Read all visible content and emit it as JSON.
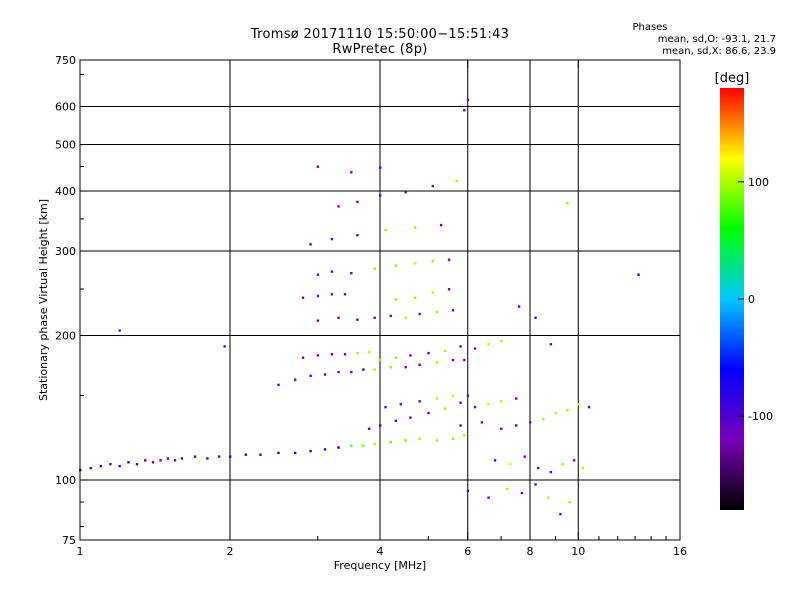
{
  "header": {
    "title_line1": "Tromsø 20171110 15:50:00−15:51:43",
    "title_line2": "RwPretec (8p)"
  },
  "stats": {
    "heading": "Phases",
    "line_o": "mean, sd,O: -93.1, 21.7",
    "line_x": "mean, sd,X:  86.6, 23.9"
  },
  "chart_data": {
    "type": "scatter",
    "title": "Tromsø 20171110 15:50:00−15:51:43",
    "subtitle": "RwPretec (8p)",
    "xlabel": "Frequency [MHz]",
    "ylabel": "Stationary phase Virtual Height [km]",
    "x_scale": "log",
    "y_scale": "log",
    "xlim": [
      1,
      16
    ],
    "ylim": [
      75,
      750
    ],
    "x_ticks": [
      1,
      2,
      4,
      6,
      8,
      10,
      16
    ],
    "x_tick_labels": [
      "1",
      "2",
      "4",
      "6",
      "8",
      "10",
      "16"
    ],
    "x_grid": [
      2,
      4,
      6,
      8,
      10
    ],
    "y_ticks": [
      75,
      100,
      200,
      300,
      400,
      500,
      600,
      750
    ],
    "y_tick_labels": [
      "75",
      "100",
      "200",
      "300",
      "400",
      "500",
      "600",
      "750"
    ],
    "y_grid": [
      100,
      200,
      300,
      400,
      500,
      600
    ],
    "grid": true,
    "colorbar": {
      "label": "[deg]",
      "min": -180,
      "max": 180,
      "ticks": [
        100,
        0,
        -100
      ],
      "tick_labels": [
        "100",
        "0",
        "-100"
      ],
      "colors": [
        "#000000",
        "#7a00b8",
        "#0000ff",
        "#00c8ff",
        "#00ff00",
        "#ffff00",
        "#ff0000"
      ]
    },
    "series": [
      {
        "name": "Phases",
        "points": [
          [
            1.0,
            105,
            -95
          ],
          [
            1.05,
            106,
            -100
          ],
          [
            1.1,
            107,
            -95
          ],
          [
            1.15,
            108,
            -105
          ],
          [
            1.2,
            107,
            -100
          ],
          [
            1.25,
            109,
            -95
          ],
          [
            1.3,
            108,
            -110
          ],
          [
            1.35,
            110,
            -100
          ],
          [
            1.4,
            109,
            -95
          ],
          [
            1.45,
            110,
            -105
          ],
          [
            1.5,
            111,
            -100
          ],
          [
            1.55,
            110,
            -95
          ],
          [
            1.6,
            111,
            -110
          ],
          [
            1.7,
            112,
            -100
          ],
          [
            1.8,
            111,
            -95
          ],
          [
            1.9,
            112,
            -105
          ],
          [
            2.0,
            112,
            -90
          ],
          [
            2.15,
            113,
            -85
          ],
          [
            2.3,
            113,
            -80
          ],
          [
            2.5,
            114,
            -75
          ],
          [
            2.7,
            114,
            -85
          ],
          [
            2.9,
            115,
            -80
          ],
          [
            3.1,
            116,
            -90
          ],
          [
            3.3,
            117,
            -70
          ],
          [
            3.5,
            118,
            80
          ],
          [
            3.7,
            118,
            90
          ],
          [
            3.9,
            119,
            95
          ],
          [
            4.2,
            120,
            80
          ],
          [
            4.5,
            121,
            85
          ],
          [
            4.8,
            122,
            95
          ],
          [
            5.2,
            121,
            90
          ],
          [
            5.6,
            122,
            85
          ],
          [
            5.9,
            124,
            100
          ],
          [
            1.2,
            205,
            -120
          ],
          [
            1.95,
            190,
            -110
          ],
          [
            2.5,
            158,
            -110
          ],
          [
            2.7,
            162,
            -100
          ],
          [
            2.9,
            165,
            -105
          ],
          [
            3.1,
            166,
            -115
          ],
          [
            3.3,
            168,
            -120
          ],
          [
            3.5,
            168,
            -110
          ],
          [
            3.7,
            170,
            -105
          ],
          [
            3.9,
            170,
            95
          ],
          [
            4.2,
            172,
            90
          ],
          [
            4.5,
            172,
            -120
          ],
          [
            4.8,
            174,
            -110
          ],
          [
            5.2,
            176,
            95
          ],
          [
            5.6,
            178,
            -120
          ],
          [
            5.9,
            178,
            -115
          ],
          [
            2.8,
            180,
            -110
          ],
          [
            3.0,
            182,
            -120
          ],
          [
            3.2,
            183,
            -115
          ],
          [
            3.4,
            183,
            -125
          ],
          [
            3.6,
            184,
            90
          ],
          [
            3.8,
            185,
            100
          ],
          [
            4.0,
            178,
            95
          ],
          [
            4.3,
            180,
            90
          ],
          [
            4.6,
            182,
            -115
          ],
          [
            5.0,
            184,
            -120
          ],
          [
            5.4,
            186,
            95
          ],
          [
            5.8,
            190,
            -110
          ],
          [
            6.2,
            188,
            -120
          ],
          [
            6.6,
            192,
            110
          ],
          [
            7.0,
            195,
            95
          ],
          [
            3.0,
            215,
            -120
          ],
          [
            3.3,
            218,
            -125
          ],
          [
            3.6,
            216,
            -115
          ],
          [
            3.9,
            218,
            -120
          ],
          [
            4.2,
            220,
            -110
          ],
          [
            4.5,
            218,
            95
          ],
          [
            4.8,
            222,
            -120
          ],
          [
            5.2,
            224,
            90
          ],
          [
            5.6,
            226,
            -115
          ],
          [
            2.8,
            240,
            -110
          ],
          [
            3.0,
            242,
            -115
          ],
          [
            3.2,
            244,
            -120
          ],
          [
            3.4,
            244,
            -110
          ],
          [
            4.3,
            238,
            90
          ],
          [
            4.7,
            240,
            95
          ],
          [
            5.1,
            246,
            100
          ],
          [
            5.5,
            250,
            -115
          ],
          [
            3.0,
            268,
            -110
          ],
          [
            3.2,
            272,
            -120
          ],
          [
            3.5,
            270,
            -115
          ],
          [
            3.9,
            276,
            95
          ],
          [
            4.3,
            280,
            90
          ],
          [
            4.7,
            283,
            100
          ],
          [
            5.1,
            286,
            95
          ],
          [
            5.5,
            288,
            -120
          ],
          [
            2.9,
            310,
            -110
          ],
          [
            3.2,
            318,
            -115
          ],
          [
            3.6,
            324,
            -120
          ],
          [
            4.1,
            332,
            95
          ],
          [
            4.7,
            336,
            90
          ],
          [
            5.3,
            340,
            -115
          ],
          [
            3.3,
            372,
            -120
          ],
          [
            3.6,
            380,
            -115
          ],
          [
            4.0,
            392,
            -110
          ],
          [
            4.5,
            398,
            -120
          ],
          [
            5.1,
            410,
            -115
          ],
          [
            5.7,
            420,
            95
          ],
          [
            3.0,
            450,
            -110
          ],
          [
            3.5,
            438,
            -120
          ],
          [
            4.0,
            448,
            -115
          ],
          [
            5.9,
            590,
            -110
          ],
          [
            6.0,
            620,
            -115
          ],
          [
            3.8,
            128,
            -115
          ],
          [
            4.0,
            130,
            -120
          ],
          [
            4.3,
            133,
            -110
          ],
          [
            4.6,
            135,
            -125
          ],
          [
            5.0,
            138,
            -115
          ],
          [
            5.4,
            141,
            95
          ],
          [
            5.8,
            145,
            -120
          ],
          [
            6.2,
            142,
            -110
          ],
          [
            6.6,
            144,
            105
          ],
          [
            7.0,
            146,
            95
          ],
          [
            7.5,
            148,
            -120
          ],
          [
            4.1,
            142,
            -110
          ],
          [
            4.4,
            144,
            -125
          ],
          [
            4.8,
            146,
            -115
          ],
          [
            5.2,
            148,
            95
          ],
          [
            5.6,
            150,
            100
          ],
          [
            6.0,
            150,
            -115
          ],
          [
            5.8,
            130,
            -110
          ],
          [
            6.4,
            132,
            -115
          ],
          [
            7.0,
            128,
            -120
          ],
          [
            7.5,
            130,
            -110
          ],
          [
            8.0,
            132,
            -115
          ],
          [
            8.5,
            134,
            95
          ],
          [
            9.0,
            138,
            100
          ],
          [
            9.5,
            140,
            95
          ],
          [
            10.0,
            144,
            105
          ],
          [
            10.5,
            142,
            -110
          ],
          [
            6.8,
            110,
            -100
          ],
          [
            7.3,
            108,
            110
          ],
          [
            7.8,
            112,
            -120
          ],
          [
            8.3,
            106,
            -115
          ],
          [
            8.8,
            104,
            -110
          ],
          [
            9.3,
            108,
            95
          ],
          [
            9.8,
            110,
            -120
          ],
          [
            10.2,
            106,
            100
          ],
          [
            6.0,
            95,
            -110
          ],
          [
            6.6,
            92,
            -115
          ],
          [
            7.2,
            96,
            95
          ],
          [
            7.7,
            94,
            -120
          ],
          [
            8.2,
            98,
            -110
          ],
          [
            8.7,
            92,
            100
          ],
          [
            9.2,
            85,
            -115
          ],
          [
            9.6,
            90,
            95
          ],
          [
            9.5,
            378,
            90
          ],
          [
            13.2,
            268,
            -110
          ],
          [
            7.6,
            230,
            -115
          ],
          [
            8.2,
            218,
            -110
          ],
          [
            8.8,
            192,
            -120
          ]
        ]
      }
    ]
  }
}
